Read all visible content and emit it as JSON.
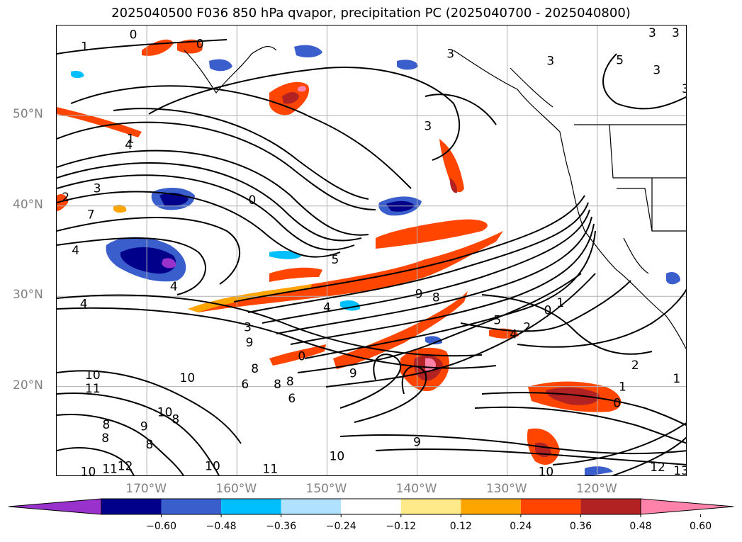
{
  "title": "2025040500 F036 850 hPa qvapor, precipitation PC (2025040700 - 2025040800)",
  "map": {
    "lon_range": [
      -180,
      -110
    ],
    "lat_range": [
      10,
      60
    ],
    "lat_labels": [
      {
        "lat": 50,
        "text": "50°N"
      },
      {
        "lat": 40,
        "text": "40°N"
      },
      {
        "lat": 30,
        "text": "30°N"
      },
      {
        "lat": 20,
        "text": "20°N"
      }
    ],
    "lon_labels": [
      {
        "lon": -170,
        "text": "170°W"
      },
      {
        "lon": -160,
        "text": "160°W"
      },
      {
        "lon": -150,
        "text": "150°W"
      },
      {
        "lon": -140,
        "text": "140°W"
      },
      {
        "lon": -130,
        "text": "130°W"
      },
      {
        "lon": -120,
        "text": "120°W"
      }
    ],
    "contour_labels": [
      {
        "lon": -176.9,
        "lat": 57.7,
        "text": "1"
      },
      {
        "lon": -171.5,
        "lat": 59.0,
        "text": "0"
      },
      {
        "lon": -164.1,
        "lat": 58.0,
        "text": "0"
      },
      {
        "lon": -171.8,
        "lat": 47.5,
        "text": "1"
      },
      {
        "lon": -172.0,
        "lat": 46.8,
        "text": "4"
      },
      {
        "lon": -179.0,
        "lat": 41.0,
        "text": "2"
      },
      {
        "lon": -175.5,
        "lat": 42.0,
        "text": "3"
      },
      {
        "lon": -176.2,
        "lat": 39.1,
        "text": "7"
      },
      {
        "lon": -177.9,
        "lat": 35.1,
        "text": "4"
      },
      {
        "lon": -158.3,
        "lat": 40.7,
        "text": "0"
      },
      {
        "lon": -167.0,
        "lat": 31.1,
        "text": "4"
      },
      {
        "lon": -149.1,
        "lat": 34.1,
        "text": "5"
      },
      {
        "lon": -177.0,
        "lat": 29.2,
        "text": "4"
      },
      {
        "lon": -150.0,
        "lat": 28.8,
        "text": "4"
      },
      {
        "lon": -158.8,
        "lat": 26.6,
        "text": "3"
      },
      {
        "lon": -158.6,
        "lat": 24.9,
        "text": "9"
      },
      {
        "lon": -136.3,
        "lat": 56.9,
        "text": "3"
      },
      {
        "lon": -138.8,
        "lat": 48.9,
        "text": "3"
      },
      {
        "lon": -117.5,
        "lat": 56.2,
        "text": "5"
      },
      {
        "lon": -113.9,
        "lat": 59.2,
        "text": "3"
      },
      {
        "lon": -111.3,
        "lat": 59.2,
        "text": "3"
      },
      {
        "lon": -113.4,
        "lat": 55.1,
        "text": "3"
      },
      {
        "lon": -110.2,
        "lat": 53.0,
        "text": "3"
      },
      {
        "lon": -125.2,
        "lat": 56.1,
        "text": "3"
      },
      {
        "lon": -139.8,
        "lat": 30.3,
        "text": "9"
      },
      {
        "lon": -137.9,
        "lat": 29.9,
        "text": "8"
      },
      {
        "lon": -131.1,
        "lat": 27.4,
        "text": "5"
      },
      {
        "lon": -129.3,
        "lat": 25.8,
        "text": "4"
      },
      {
        "lon": -127.8,
        "lat": 26.6,
        "text": "2"
      },
      {
        "lon": -125.5,
        "lat": 28.5,
        "text": "0"
      },
      {
        "lon": -124.1,
        "lat": 29.3,
        "text": "1"
      },
      {
        "lon": -115.8,
        "lat": 22.4,
        "text": "2"
      },
      {
        "lon": -111.2,
        "lat": 20.9,
        "text": "1"
      },
      {
        "lon": -117.2,
        "lat": 20.0,
        "text": "1"
      },
      {
        "lon": -117.8,
        "lat": 18.2,
        "text": "0"
      },
      {
        "lon": -152.8,
        "lat": 23.4,
        "text": "0"
      },
      {
        "lon": -147.1,
        "lat": 21.5,
        "text": "9"
      },
      {
        "lon": -155.5,
        "lat": 20.3,
        "text": "8"
      },
      {
        "lon": -154.1,
        "lat": 20.6,
        "text": "8"
      },
      {
        "lon": -158.0,
        "lat": 22.0,
        "text": "8"
      },
      {
        "lon": -176.0,
        "lat": 21.3,
        "text": "10"
      },
      {
        "lon": -176.0,
        "lat": 19.8,
        "text": "11"
      },
      {
        "lon": -165.5,
        "lat": 21.0,
        "text": "10"
      },
      {
        "lon": -159.1,
        "lat": 20.3,
        "text": "6"
      },
      {
        "lon": -153.9,
        "lat": 18.7,
        "text": "6"
      },
      {
        "lon": -168.0,
        "lat": 17.2,
        "text": "10"
      },
      {
        "lon": -166.8,
        "lat": 16.4,
        "text": "8"
      },
      {
        "lon": -174.5,
        "lat": 15.8,
        "text": "8"
      },
      {
        "lon": -174.6,
        "lat": 14.3,
        "text": "8"
      },
      {
        "lon": -170.3,
        "lat": 15.6,
        "text": "9"
      },
      {
        "lon": -169.7,
        "lat": 13.6,
        "text": "8"
      },
      {
        "lon": -176.5,
        "lat": 10.6,
        "text": "10"
      },
      {
        "lon": -174.1,
        "lat": 10.9,
        "text": "11"
      },
      {
        "lon": -172.4,
        "lat": 11.2,
        "text": "12"
      },
      {
        "lon": -162.7,
        "lat": 11.2,
        "text": "10"
      },
      {
        "lon": -156.3,
        "lat": 10.9,
        "text": "11"
      },
      {
        "lon": -148.9,
        "lat": 12.3,
        "text": "10"
      },
      {
        "lon": -140.0,
        "lat": 13.9,
        "text": "9"
      },
      {
        "lon": -125.7,
        "lat": 10.6,
        "text": "10"
      },
      {
        "lon": -113.3,
        "lat": 11.1,
        "text": "12"
      },
      {
        "lon": -110.7,
        "lat": 10.7,
        "text": "13"
      }
    ],
    "precip_fill_colors": {
      "positive": [
        "#ffea8a",
        "#ffa500",
        "#ff4500",
        "#b22222",
        "#ff82ab"
      ],
      "negative": [
        "#b0e2ff",
        "#00bfff",
        "#3a5fcd",
        "#00008b",
        "#9932cc"
      ]
    }
  },
  "colorbar": {
    "colors": [
      "#9932cc",
      "#00008b",
      "#3a5fcd",
      "#00bfff",
      "#b0e2ff",
      "#ffffff",
      "#ffea8a",
      "#ffa500",
      "#ff4500",
      "#b22222",
      "#ff82ab"
    ],
    "ticks": [
      "−0.60",
      "−0.48",
      "−0.36",
      "−0.24",
      "−0.12",
      "0.12",
      "0.24",
      "0.36",
      "0.48",
      "0.60"
    ]
  }
}
